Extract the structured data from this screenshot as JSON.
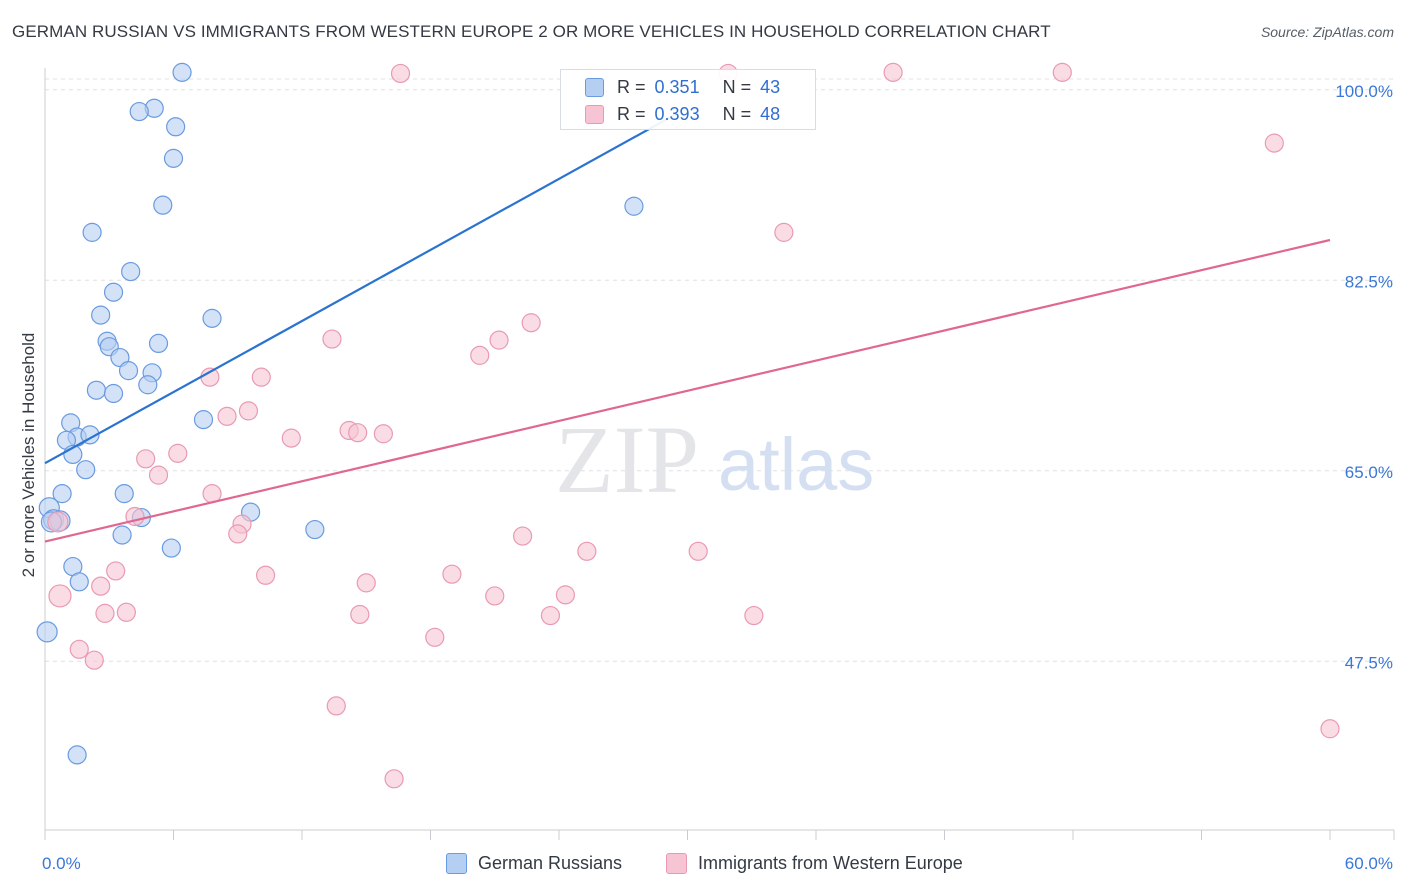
{
  "title": "GERMAN RUSSIAN VS IMMIGRANTS FROM WESTERN EUROPE 2 OR MORE VEHICLES IN HOUSEHOLD CORRELATION CHART",
  "source": "Source: ZipAtlas.com",
  "watermark": {
    "zip": "ZIP",
    "atlas": "atlas"
  },
  "legend": {
    "r_label": "R =",
    "n_label": "N =",
    "rows": [
      {
        "name": "German Russians",
        "r": "0.351",
        "n": "43"
      },
      {
        "name": "Immigrants from Western Europe",
        "r": "0.393",
        "n": "48"
      }
    ]
  },
  "colors": {
    "blue_fill": "#b5cff2",
    "blue_stroke": "#6a9be0",
    "blue_line": "#2a73d0",
    "pink_fill": "#f7c4d4",
    "pink_stroke": "#e99ab3",
    "pink_line": "#e06890",
    "tick_label": "#3a77d6",
    "grid": "#dde1e6"
  },
  "chart_data": {
    "type": "scatter",
    "title": "GERMAN RUSSIAN VS IMMIGRANTS FROM WESTERN EUROPE 2 OR MORE VEHICLES IN HOUSEHOLD CORRELATION CHART",
    "xlabel": "",
    "ylabel": "2 or more Vehicles in Household",
    "xlim": [
      0,
      60
    ],
    "ylim": [
      32,
      102
    ],
    "x_tick_labels": [
      {
        "value": 0,
        "label": "0.0%"
      },
      {
        "value": 60,
        "label": "60.0%"
      }
    ],
    "x_minor_ticks": [
      0,
      6,
      12,
      18,
      24,
      30,
      36,
      42,
      48,
      54,
      60
    ],
    "y_ticks": [
      {
        "value": 100,
        "label": "100.0%"
      },
      {
        "value": 82.5,
        "label": "82.5%"
      },
      {
        "value": 65,
        "label": "65.0%"
      },
      {
        "value": 47.5,
        "label": "47.5%"
      }
    ],
    "grid": true,
    "series": [
      {
        "name": "German Russians",
        "color": "blue",
        "trend": {
          "x": [
            0,
            29.5
          ],
          "y": [
            65.7,
            97.8
          ]
        },
        "points": [
          [
            6.4,
            101.6
          ],
          [
            5.1,
            98.3
          ],
          [
            4.4,
            98.0
          ],
          [
            6.1,
            96.6
          ],
          [
            6.0,
            93.7
          ],
          [
            5.5,
            89.4
          ],
          [
            2.2,
            86.9
          ],
          [
            27.5,
            89.3
          ],
          [
            4.0,
            83.3
          ],
          [
            3.2,
            81.4
          ],
          [
            2.6,
            79.3
          ],
          [
            7.8,
            79.0
          ],
          [
            2.9,
            76.9
          ],
          [
            5.3,
            76.7
          ],
          [
            3.0,
            76.4
          ],
          [
            3.5,
            75.4
          ],
          [
            3.9,
            74.2
          ],
          [
            5.0,
            74.0
          ],
          [
            4.8,
            72.9
          ],
          [
            2.4,
            72.4
          ],
          [
            3.2,
            72.1
          ],
          [
            7.4,
            69.7
          ],
          [
            1.2,
            69.4
          ],
          [
            1.5,
            68.1
          ],
          [
            2.1,
            68.3
          ],
          [
            1.0,
            67.8
          ],
          [
            1.3,
            66.5
          ],
          [
            1.9,
            65.1
          ],
          [
            0.8,
            62.9
          ],
          [
            3.7,
            62.9
          ],
          [
            9.6,
            61.2
          ],
          [
            0.2,
            61.6
          ],
          [
            0.4,
            60.5
          ],
          [
            0.7,
            60.4
          ],
          [
            4.5,
            60.7
          ],
          [
            12.6,
            59.6
          ],
          [
            3.6,
            59.1
          ],
          [
            5.9,
            57.9
          ],
          [
            1.3,
            56.2
          ],
          [
            1.6,
            54.8
          ],
          [
            0.1,
            50.2
          ],
          [
            1.5,
            38.9
          ],
          [
            0.3,
            60.3
          ]
        ]
      },
      {
        "name": "Immigrants from Western Europe",
        "color": "pink",
        "trend": {
          "x": [
            0,
            60
          ],
          "y": [
            58.5,
            86.2
          ]
        },
        "points": [
          [
            16.6,
            101.5
          ],
          [
            39.6,
            101.6
          ],
          [
            47.5,
            101.6
          ],
          [
            31.9,
            101.5
          ],
          [
            57.4,
            95.1
          ],
          [
            34.5,
            86.9
          ],
          [
            22.7,
            78.6
          ],
          [
            13.4,
            77.1
          ],
          [
            21.2,
            77.0
          ],
          [
            20.3,
            75.6
          ],
          [
            10.1,
            73.6
          ],
          [
            7.7,
            73.6
          ],
          [
            9.5,
            70.5
          ],
          [
            8.5,
            70.0
          ],
          [
            14.2,
            68.7
          ],
          [
            14.6,
            68.5
          ],
          [
            15.8,
            68.4
          ],
          [
            11.5,
            68.0
          ],
          [
            6.2,
            66.6
          ],
          [
            4.7,
            66.1
          ],
          [
            5.3,
            64.6
          ],
          [
            7.8,
            62.9
          ],
          [
            4.2,
            60.8
          ],
          [
            9.2,
            60.1
          ],
          [
            0.6,
            60.3
          ],
          [
            22.3,
            59.0
          ],
          [
            25.3,
            57.6
          ],
          [
            30.5,
            57.6
          ],
          [
            3.3,
            55.8
          ],
          [
            10.3,
            55.4
          ],
          [
            24.3,
            53.6
          ],
          [
            23.6,
            51.7
          ],
          [
            15.0,
            54.7
          ],
          [
            2.6,
            54.4
          ],
          [
            0.7,
            53.5
          ],
          [
            3.8,
            52.0
          ],
          [
            2.8,
            51.9
          ],
          [
            14.7,
            51.8
          ],
          [
            33.1,
            51.7
          ],
          [
            18.2,
            49.7
          ],
          [
            1.6,
            48.6
          ],
          [
            2.3,
            47.6
          ],
          [
            13.6,
            43.4
          ],
          [
            16.3,
            36.7
          ],
          [
            60.0,
            41.3
          ],
          [
            21.0,
            53.5
          ],
          [
            19.0,
            55.5
          ],
          [
            9.0,
            59.2
          ]
        ]
      }
    ]
  }
}
